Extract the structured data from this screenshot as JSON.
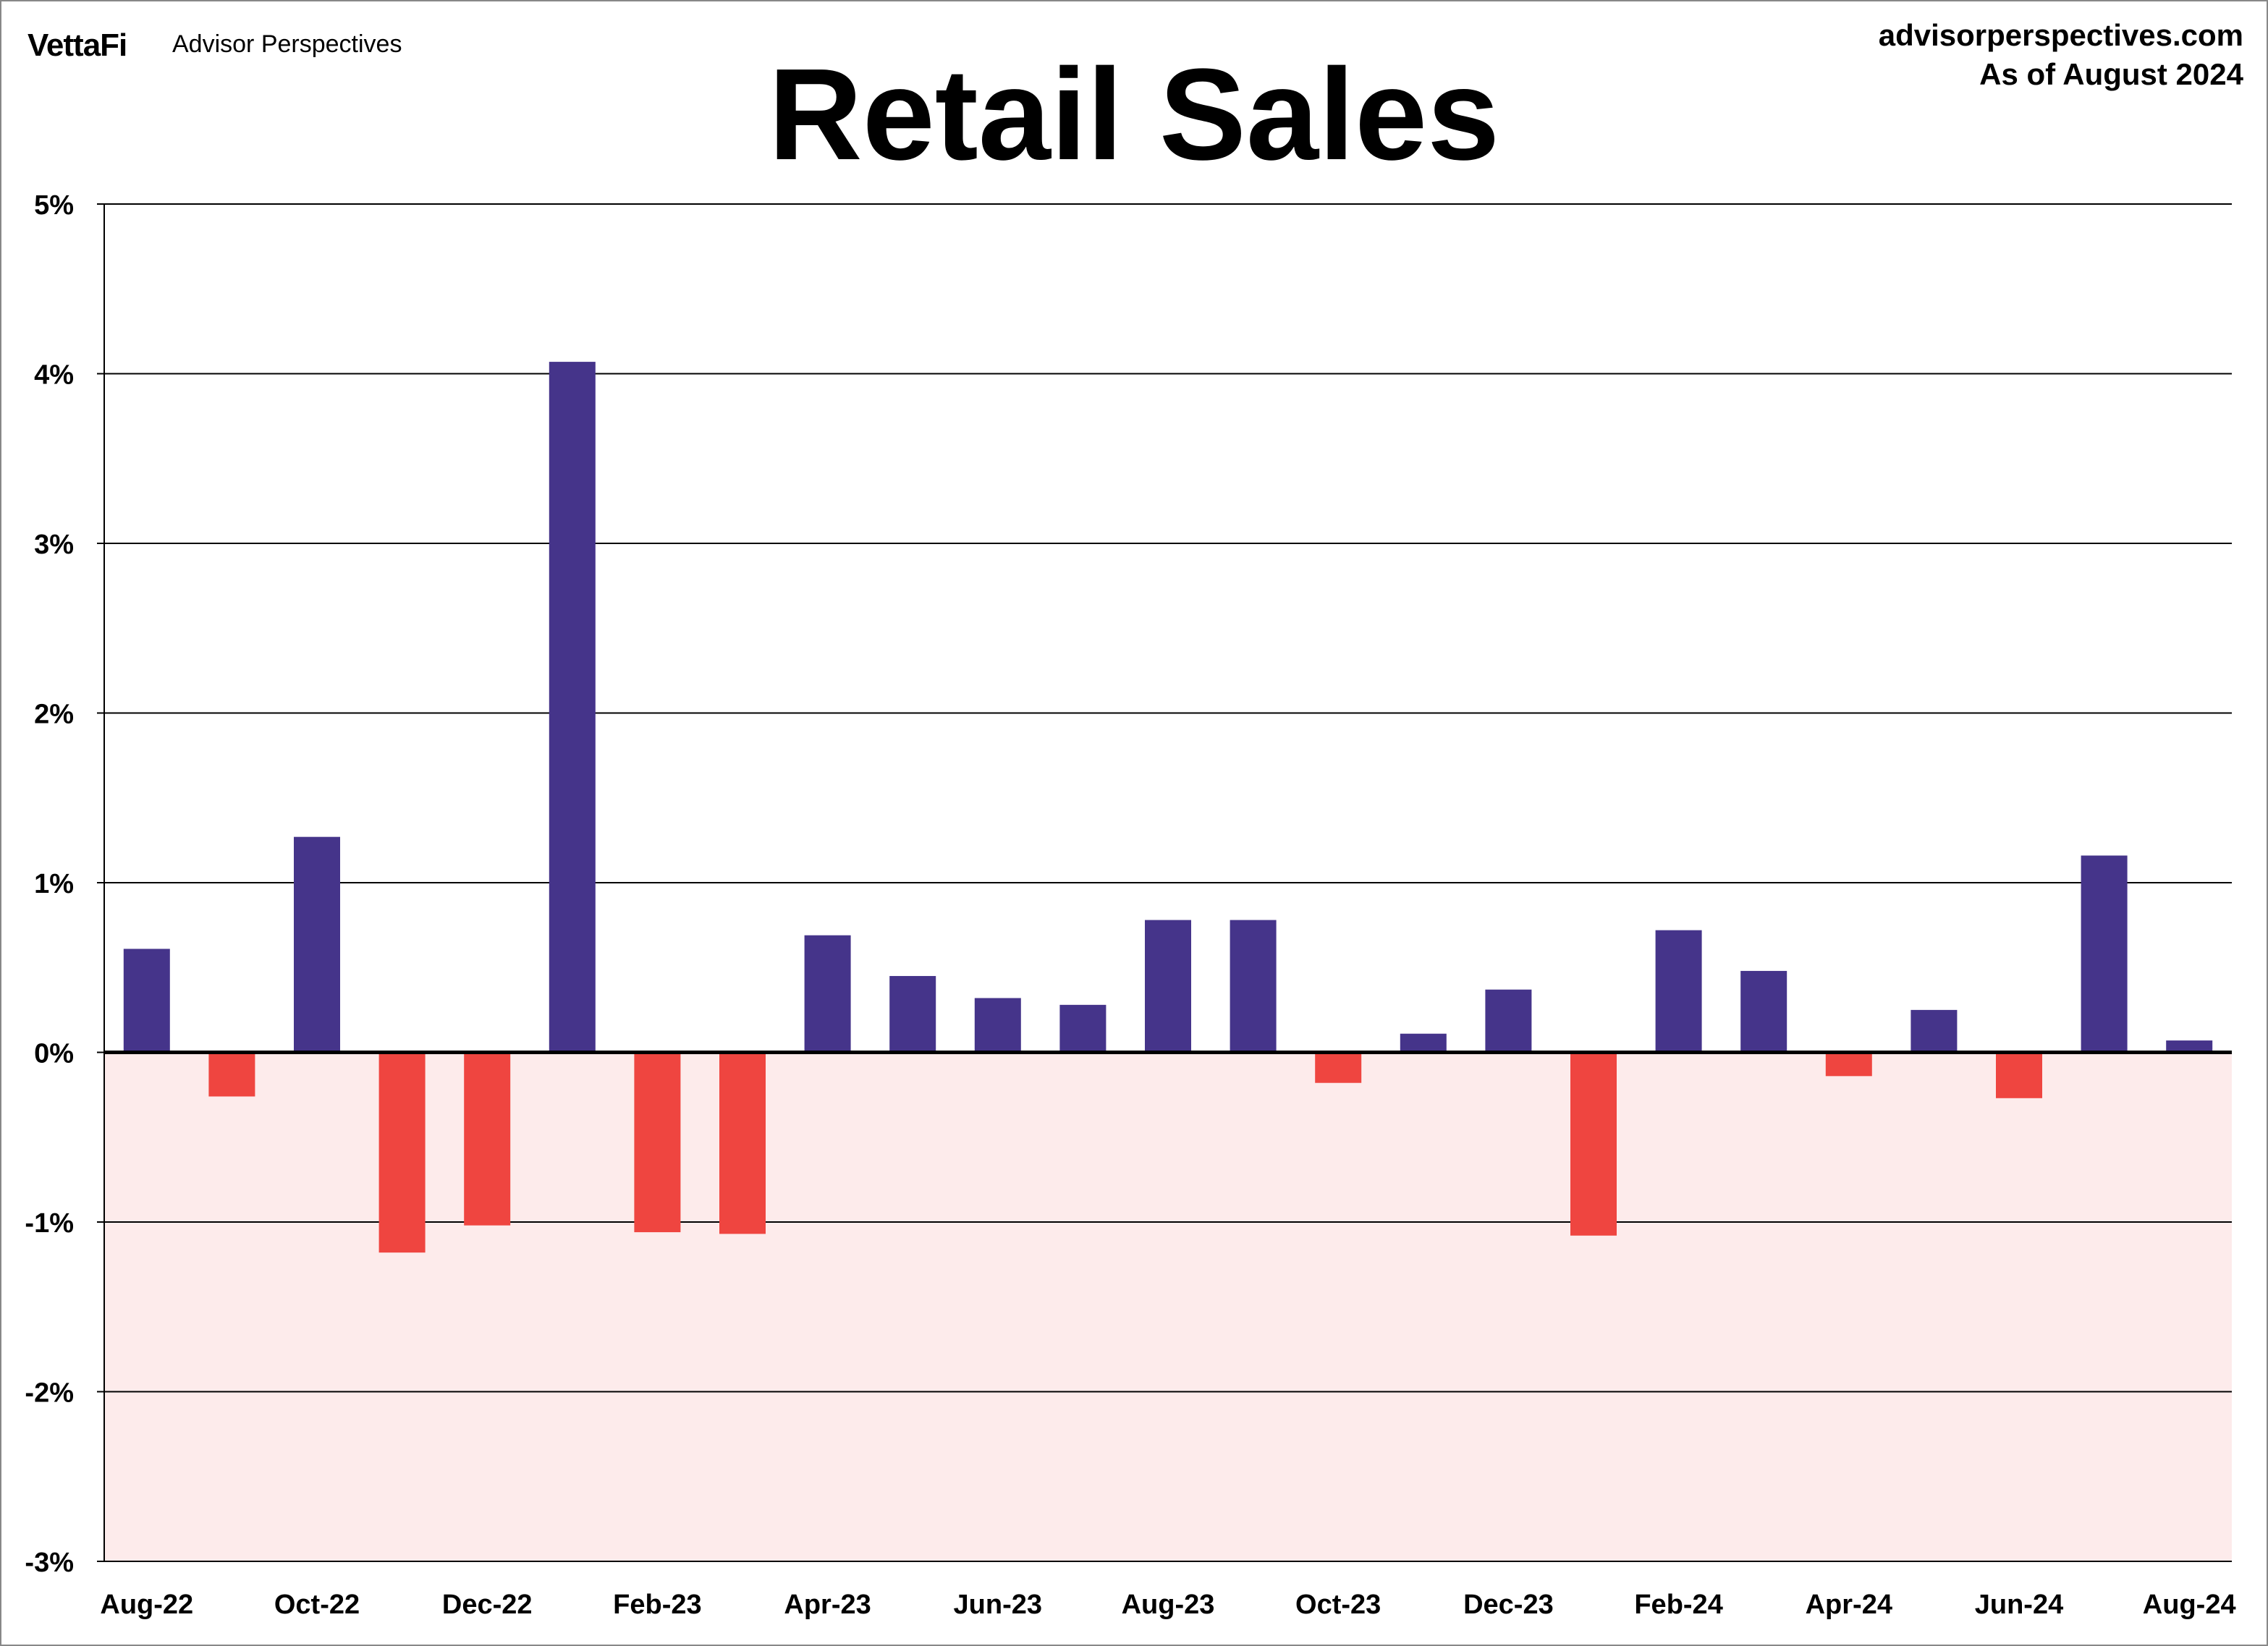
{
  "header": {
    "logo": "VettaFi",
    "brand": "Advisor Perspectives",
    "site": "advisorperspectives.com",
    "as_of": "As of August 2024"
  },
  "chart_data": {
    "type": "bar",
    "title": "Retail Sales",
    "xlabel": "",
    "ylabel": "",
    "ylim": [
      -3,
      5
    ],
    "yticks": [
      "-3%",
      "-2%",
      "-1%",
      "0%",
      "1%",
      "2%",
      "3%",
      "4%",
      "5%"
    ],
    "grid": true,
    "categories": [
      "Aug-22",
      "Sep-22",
      "Oct-22",
      "Nov-22",
      "Dec-22",
      "Jan-23",
      "Feb-23",
      "Mar-23",
      "Apr-23",
      "May-23",
      "Jun-23",
      "Jul-23",
      "Aug-23",
      "Sep-23",
      "Oct-23",
      "Nov-23",
      "Dec-23",
      "Jan-24",
      "Feb-24",
      "Mar-24",
      "Apr-24",
      "May-24",
      "Jun-24",
      "Jul-24",
      "Aug-24"
    ],
    "xtick_labels": [
      "Aug-22",
      "Oct-22",
      "Dec-22",
      "Feb-23",
      "Apr-23",
      "Jun-23",
      "Aug-23",
      "Oct-23",
      "Dec-23",
      "Feb-24",
      "Apr-24",
      "Jun-24",
      "Aug-24"
    ],
    "values": [
      0.61,
      -0.26,
      1.27,
      -1.18,
      -1.02,
      4.07,
      -1.06,
      -1.07,
      0.69,
      0.45,
      0.32,
      0.28,
      0.78,
      0.78,
      -0.18,
      0.11,
      0.37,
      -1.08,
      0.72,
      0.48,
      -0.14,
      0.25,
      -0.27,
      1.16,
      0.07
    ],
    "colors": {
      "positive": "#45348a",
      "negative": "#ef4540",
      "negative_region": "#fdebeb"
    }
  }
}
